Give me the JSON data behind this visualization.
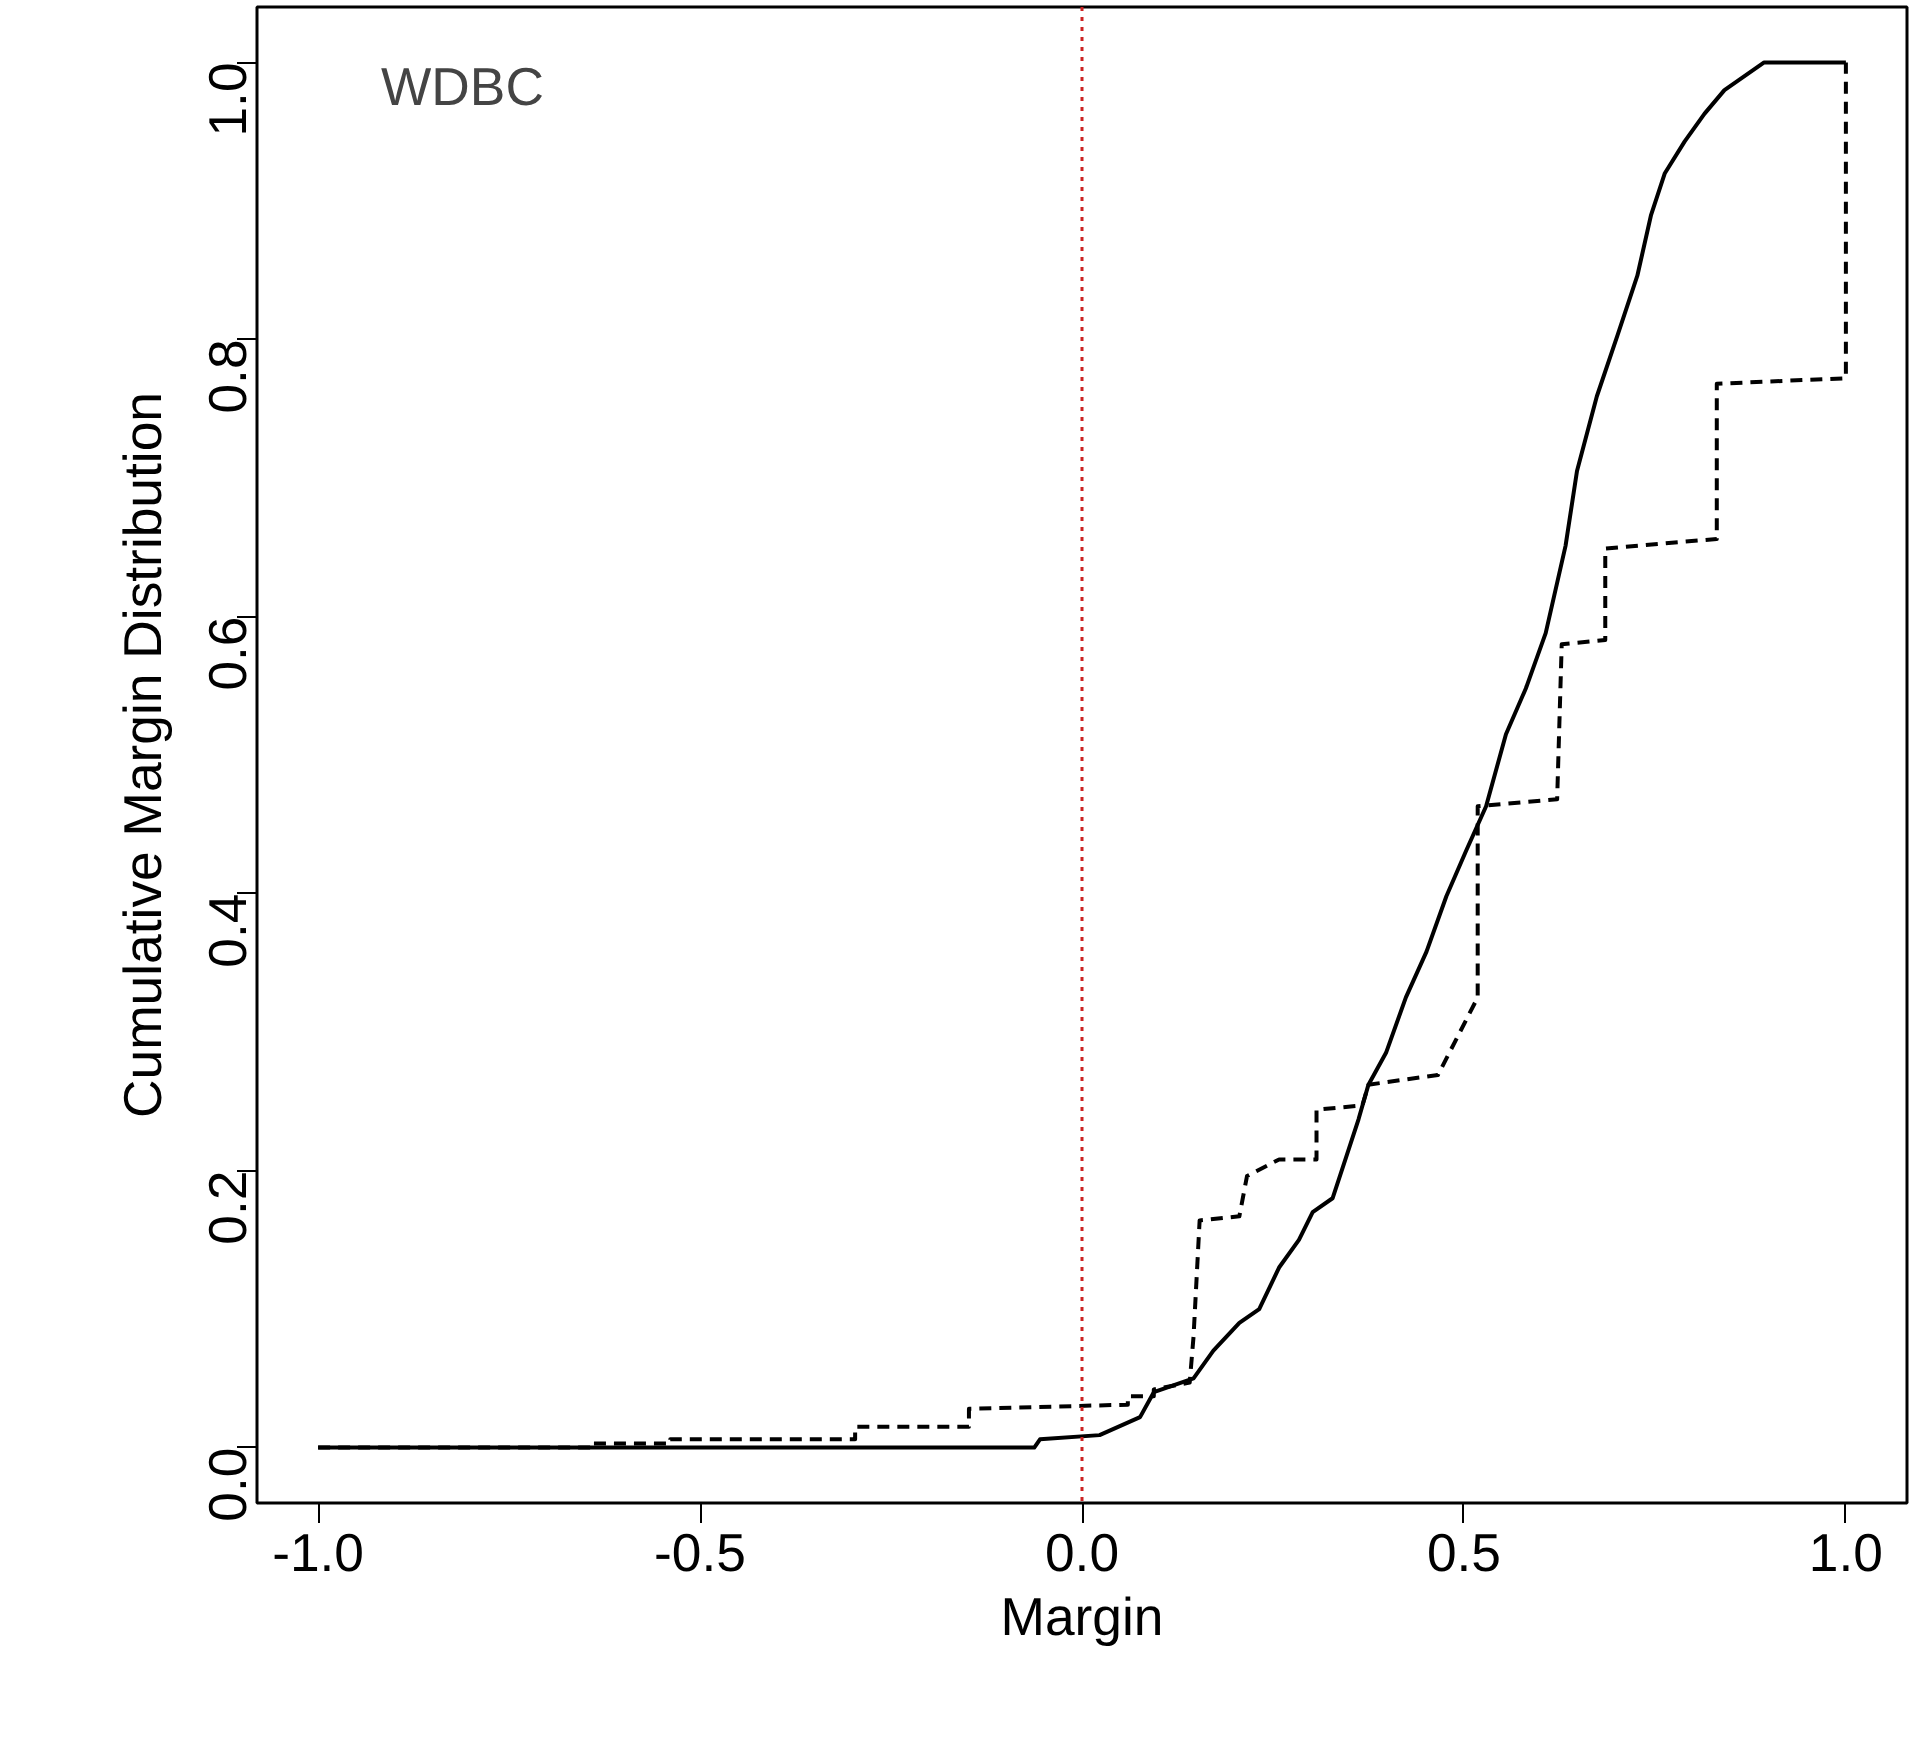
{
  "chart_data": {
    "type": "line",
    "xlabel": "Margin",
    "ylabel": "Cumulative Margin Distribution",
    "annotations": [
      "WDBC"
    ],
    "xlim": [
      -1.08,
      1.08
    ],
    "ylim": [
      -0.04,
      1.04
    ],
    "xticks": [
      {
        "value": -1,
        "label": "-1.0"
      },
      {
        "value": -0.5,
        "label": "-0.5"
      },
      {
        "value": 0,
        "label": "0.0"
      },
      {
        "value": 0.5,
        "label": "0.5"
      },
      {
        "value": 1,
        "label": "1.0"
      }
    ],
    "yticks": [
      {
        "value": 0,
        "label": "0.0"
      },
      0.2,
      0.4,
      0.6,
      0.8,
      {
        "value": 1,
        "label": "1.0"
      }
    ],
    "grid": false,
    "marker": "none",
    "ref_lines": [
      {
        "axis": "x",
        "value": 0,
        "color": "#cc2222",
        "line_style": "dotted"
      }
    ],
    "series": [
      {
        "color": "#000000",
        "line_style": "solid",
        "x": [
          -1.0,
          -0.271,
          -0.0625,
          -0.055,
          0.023,
          0.076,
          0.094,
          0.146,
          0.172,
          0.206,
          0.232,
          0.258,
          0.284,
          0.302,
          0.328,
          0.346,
          0.362,
          0.375,
          0.398,
          0.424,
          0.451,
          0.477,
          0.503,
          0.529,
          0.555,
          0.581,
          0.607,
          0.633,
          0.648,
          0.674,
          0.701,
          0.727,
          0.745,
          0.763,
          0.789,
          0.815,
          0.841,
          0.893,
          1.0
        ],
        "values": [
          0.0,
          0.0,
          0.0,
          0.006,
          0.009,
          0.022,
          0.04,
          0.05,
          0.07,
          0.09,
          0.1,
          0.13,
          0.15,
          0.17,
          0.18,
          0.21,
          0.237,
          0.262,
          0.285,
          0.325,
          0.358,
          0.398,
          0.431,
          0.463,
          0.515,
          0.548,
          0.588,
          0.651,
          0.705,
          0.759,
          0.803,
          0.846,
          0.89,
          0.92,
          0.943,
          0.963,
          0.98,
          1.0,
          1.0
        ]
      },
      {
        "color": "#000000",
        "line_style": "dashed",
        "x": [
          -1.0,
          -0.643,
          -0.643,
          -0.539,
          -0.539,
          -0.297,
          -0.297,
          -0.148,
          -0.148,
          0.06,
          0.06,
          0.094,
          0.094,
          0.141,
          0.146,
          0.154,
          0.206,
          0.216,
          0.258,
          0.307,
          0.307,
          0.367,
          0.375,
          0.466,
          0.518,
          0.518,
          0.622,
          0.628,
          0.685,
          0.685,
          0.831,
          0.831,
          1.0,
          1.0
        ],
        "values": [
          0.0,
          0.0,
          0.003,
          0.003,
          0.006,
          0.006,
          0.015,
          0.015,
          0.028,
          0.031,
          0.037,
          0.037,
          0.042,
          0.047,
          0.08,
          0.164,
          0.167,
          0.196,
          0.208,
          0.208,
          0.244,
          0.247,
          0.262,
          0.269,
          0.325,
          0.463,
          0.468,
          0.58,
          0.583,
          0.649,
          0.656,
          0.768,
          0.772,
          1.0
        ]
      }
    ]
  }
}
